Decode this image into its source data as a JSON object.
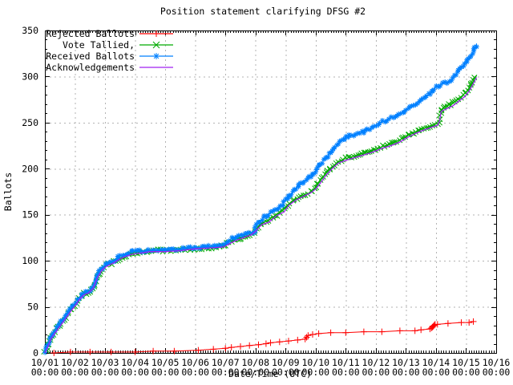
{
  "chart_data": {
    "type": "line",
    "title": "Position statement clarifying DFSG #2",
    "xlabel": "Date/Time (UTC)",
    "ylabel": "Ballots",
    "ylim": [
      0,
      350
    ],
    "y_ticks": [
      0,
      50,
      100,
      150,
      200,
      250,
      300,
      350
    ],
    "xlim_days": [
      0,
      15
    ],
    "x_tick_labels": [
      "10/01",
      "10/02",
      "10/03",
      "10/04",
      "10/05",
      "10/06",
      "10/07",
      "10/08",
      "10/09",
      "10/10",
      "10/11",
      "10/12",
      "10/13",
      "10/14",
      "10/15",
      "10/16"
    ],
    "x_tick_time": "00:00",
    "grid": true,
    "legend_position": "top-left",
    "series": [
      {
        "name": "Rejected Ballots",
        "color": "#ff0000",
        "marker": "plus",
        "points": [
          [
            0.3,
            0
          ],
          [
            0.85,
            1
          ],
          [
            1.5,
            1
          ],
          [
            2.2,
            1
          ],
          [
            3.0,
            1
          ],
          [
            3.6,
            2
          ],
          [
            4.3,
            2
          ],
          [
            5.1,
            3
          ],
          [
            5.6,
            4
          ],
          [
            6.0,
            5
          ],
          [
            6.2,
            6
          ],
          [
            6.5,
            7
          ],
          [
            6.8,
            8
          ],
          [
            7.1,
            9
          ],
          [
            7.35,
            10
          ],
          [
            7.5,
            11
          ],
          [
            7.8,
            12
          ],
          [
            8.1,
            13
          ],
          [
            8.4,
            14
          ],
          [
            8.65,
            15
          ],
          [
            8.7,
            17
          ],
          [
            8.75,
            19
          ],
          [
            8.9,
            20
          ],
          [
            9.1,
            21
          ],
          [
            9.5,
            22
          ],
          [
            10.0,
            22
          ],
          [
            10.6,
            23
          ],
          [
            11.2,
            23
          ],
          [
            11.8,
            24
          ],
          [
            12.3,
            24
          ],
          [
            12.5,
            25
          ],
          [
            12.8,
            26
          ],
          [
            12.85,
            27
          ],
          [
            12.88,
            28
          ],
          [
            12.91,
            29
          ],
          [
            12.94,
            30
          ],
          [
            12.97,
            31
          ],
          [
            13.05,
            31
          ],
          [
            13.4,
            32
          ],
          [
            13.84,
            33
          ],
          [
            14.1,
            33
          ],
          [
            14.24,
            34
          ]
        ]
      },
      {
        "name": "Vote Tallied,",
        "color": "#00aa00",
        "marker": "cross",
        "points": [
          [
            0,
            0
          ],
          [
            0.05,
            3
          ],
          [
            0.1,
            8
          ],
          [
            0.15,
            12
          ],
          [
            0.2,
            16
          ],
          [
            0.3,
            21
          ],
          [
            0.4,
            26
          ],
          [
            0.5,
            30
          ],
          [
            0.6,
            35
          ],
          [
            0.7,
            39
          ],
          [
            0.8,
            44
          ],
          [
            0.9,
            48
          ],
          [
            1.0,
            52
          ],
          [
            1.1,
            56
          ],
          [
            1.2,
            61
          ],
          [
            1.3,
            64
          ],
          [
            1.45,
            66
          ],
          [
            1.55,
            69
          ],
          [
            1.65,
            75
          ],
          [
            1.75,
            83
          ],
          [
            1.85,
            89
          ],
          [
            1.95,
            93
          ],
          [
            2.05,
            95
          ],
          [
            2.2,
            97
          ],
          [
            2.35,
            100
          ],
          [
            2.5,
            103
          ],
          [
            2.65,
            105
          ],
          [
            2.8,
            107
          ],
          [
            3.0,
            109
          ],
          [
            3.3,
            110
          ],
          [
            3.7,
            111
          ],
          [
            4.1,
            111
          ],
          [
            4.5,
            112
          ],
          [
            4.9,
            113
          ],
          [
            5.3,
            114
          ],
          [
            5.7,
            115
          ],
          [
            5.95,
            116
          ],
          [
            6.05,
            119
          ],
          [
            6.2,
            122
          ],
          [
            6.4,
            124
          ],
          [
            6.6,
            126
          ],
          [
            6.8,
            128
          ],
          [
            6.95,
            130
          ],
          [
            7.0,
            133
          ],
          [
            7.1,
            137
          ],
          [
            7.2,
            140
          ],
          [
            7.35,
            143
          ],
          [
            7.5,
            146
          ],
          [
            7.7,
            150
          ],
          [
            7.9,
            154
          ],
          [
            8.0,
            158
          ],
          [
            8.15,
            162
          ],
          [
            8.3,
            166
          ],
          [
            8.45,
            169
          ],
          [
            8.6,
            171
          ],
          [
            8.75,
            173
          ],
          [
            8.9,
            176
          ],
          [
            9.0,
            180
          ],
          [
            9.1,
            185
          ],
          [
            9.25,
            191
          ],
          [
            9.4,
            197
          ],
          [
            9.55,
            202
          ],
          [
            9.7,
            206
          ],
          [
            9.85,
            209
          ],
          [
            10.0,
            211
          ],
          [
            10.2,
            213
          ],
          [
            10.4,
            215
          ],
          [
            10.6,
            217
          ],
          [
            10.8,
            219
          ],
          [
            11.0,
            221
          ],
          [
            11.15,
            223
          ],
          [
            11.3,
            225
          ],
          [
            11.5,
            227
          ],
          [
            11.7,
            230
          ],
          [
            11.9,
            233
          ],
          [
            12.0,
            235
          ],
          [
            12.2,
            238
          ],
          [
            12.4,
            241
          ],
          [
            12.6,
            244
          ],
          [
            12.8,
            246
          ],
          [
            12.95,
            248
          ],
          [
            13.05,
            249
          ],
          [
            13.1,
            251
          ],
          [
            13.14,
            257
          ],
          [
            13.17,
            264
          ],
          [
            13.3,
            267
          ],
          [
            13.5,
            270
          ],
          [
            13.7,
            275
          ],
          [
            13.9,
            280
          ],
          [
            14.05,
            285
          ],
          [
            14.15,
            290
          ],
          [
            14.25,
            296
          ],
          [
            14.35,
            301
          ]
        ]
      },
      {
        "name": "Received Ballots",
        "color": "#0080ff",
        "marker": "star",
        "points": [
          [
            0,
            0
          ],
          [
            0.05,
            3
          ],
          [
            0.1,
            8
          ],
          [
            0.15,
            13
          ],
          [
            0.2,
            17
          ],
          [
            0.3,
            22
          ],
          [
            0.4,
            27
          ],
          [
            0.5,
            31
          ],
          [
            0.6,
            36
          ],
          [
            0.7,
            40
          ],
          [
            0.8,
            45
          ],
          [
            0.9,
            49
          ],
          [
            1.0,
            53
          ],
          [
            1.1,
            57
          ],
          [
            1.2,
            62
          ],
          [
            1.3,
            65
          ],
          [
            1.45,
            67
          ],
          [
            1.55,
            70
          ],
          [
            1.65,
            76
          ],
          [
            1.75,
            84
          ],
          [
            1.85,
            90
          ],
          [
            1.95,
            94
          ],
          [
            2.05,
            96
          ],
          [
            2.2,
            98
          ],
          [
            2.35,
            101
          ],
          [
            2.5,
            105
          ],
          [
            2.65,
            107
          ],
          [
            2.8,
            109
          ],
          [
            3.0,
            110
          ],
          [
            3.3,
            111
          ],
          [
            3.7,
            112
          ],
          [
            4.1,
            112
          ],
          [
            4.5,
            113
          ],
          [
            4.9,
            114
          ],
          [
            5.3,
            115
          ],
          [
            5.7,
            116
          ],
          [
            5.95,
            117
          ],
          [
            6.05,
            121
          ],
          [
            6.2,
            124
          ],
          [
            6.4,
            126
          ],
          [
            6.6,
            128
          ],
          [
            6.8,
            130
          ],
          [
            6.95,
            132
          ],
          [
            7.0,
            136
          ],
          [
            7.1,
            141
          ],
          [
            7.2,
            145
          ],
          [
            7.35,
            149
          ],
          [
            7.5,
            152
          ],
          [
            7.7,
            156
          ],
          [
            7.9,
            161
          ],
          [
            8.0,
            166
          ],
          [
            8.15,
            171
          ],
          [
            8.3,
            177
          ],
          [
            8.45,
            182
          ],
          [
            8.6,
            186
          ],
          [
            8.75,
            189
          ],
          [
            8.9,
            193
          ],
          [
            9.0,
            197
          ],
          [
            9.1,
            203
          ],
          [
            9.25,
            209
          ],
          [
            9.4,
            214
          ],
          [
            9.55,
            219
          ],
          [
            9.7,
            225
          ],
          [
            9.85,
            230
          ],
          [
            10.0,
            234
          ],
          [
            10.2,
            236
          ],
          [
            10.4,
            238
          ],
          [
            10.6,
            240
          ],
          [
            10.8,
            243
          ],
          [
            11.0,
            247
          ],
          [
            11.15,
            250
          ],
          [
            11.3,
            252
          ],
          [
            11.5,
            255
          ],
          [
            11.7,
            258
          ],
          [
            11.9,
            261
          ],
          [
            12.0,
            264
          ],
          [
            12.2,
            268
          ],
          [
            12.4,
            272
          ],
          [
            12.6,
            276
          ],
          [
            12.8,
            282
          ],
          [
            12.9,
            285
          ],
          [
            13.0,
            289
          ],
          [
            13.15,
            291
          ],
          [
            13.3,
            293
          ],
          [
            13.5,
            296
          ],
          [
            13.6,
            300
          ],
          [
            13.7,
            304
          ],
          [
            13.8,
            308
          ],
          [
            13.9,
            311
          ],
          [
            14.0,
            315
          ],
          [
            14.1,
            319
          ],
          [
            14.2,
            325
          ],
          [
            14.3,
            331
          ],
          [
            14.35,
            336
          ]
        ]
      },
      {
        "name": "Acknowledgements",
        "color": "#a020f0",
        "marker": "none",
        "points": [
          [
            0,
            0
          ],
          [
            0.1,
            7
          ],
          [
            0.2,
            15
          ],
          [
            0.3,
            20
          ],
          [
            0.5,
            29
          ],
          [
            0.7,
            38
          ],
          [
            0.9,
            47
          ],
          [
            1.0,
            51
          ],
          [
            1.2,
            60
          ],
          [
            1.3,
            63
          ],
          [
            1.45,
            65
          ],
          [
            1.6,
            70
          ],
          [
            1.75,
            82
          ],
          [
            1.9,
            90
          ],
          [
            2.05,
            94
          ],
          [
            2.3,
            98
          ],
          [
            2.5,
            102
          ],
          [
            2.7,
            105
          ],
          [
            2.9,
            107
          ],
          [
            3.1,
            108
          ],
          [
            3.5,
            110
          ],
          [
            4.0,
            110
          ],
          [
            4.5,
            111
          ],
          [
            5.0,
            113
          ],
          [
            5.5,
            114
          ],
          [
            5.95,
            115
          ],
          [
            6.1,
            118
          ],
          [
            6.35,
            122
          ],
          [
            6.6,
            125
          ],
          [
            6.85,
            128
          ],
          [
            7.0,
            132
          ],
          [
            7.2,
            139
          ],
          [
            7.45,
            142
          ],
          [
            7.7,
            149
          ],
          [
            7.95,
            153
          ],
          [
            8.1,
            160
          ],
          [
            8.35,
            166
          ],
          [
            8.6,
            170
          ],
          [
            8.85,
            174
          ],
          [
            9.0,
            178
          ],
          [
            9.15,
            184
          ],
          [
            9.35,
            193
          ],
          [
            9.55,
            200
          ],
          [
            9.75,
            206
          ],
          [
            10.0,
            209
          ],
          [
            10.3,
            212
          ],
          [
            10.6,
            215
          ],
          [
            10.9,
            218
          ],
          [
            11.2,
            222
          ],
          [
            11.5,
            225
          ],
          [
            11.8,
            229
          ],
          [
            12.0,
            233
          ],
          [
            12.3,
            238
          ],
          [
            12.6,
            242
          ],
          [
            12.85,
            245
          ],
          [
            13.05,
            247
          ],
          [
            13.12,
            252
          ],
          [
            13.17,
            262
          ],
          [
            13.35,
            265
          ],
          [
            13.55,
            268
          ],
          [
            13.75,
            273
          ],
          [
            13.95,
            278
          ],
          [
            14.1,
            284
          ],
          [
            14.2,
            290
          ],
          [
            14.3,
            296
          ],
          [
            14.35,
            299
          ]
        ]
      }
    ]
  }
}
